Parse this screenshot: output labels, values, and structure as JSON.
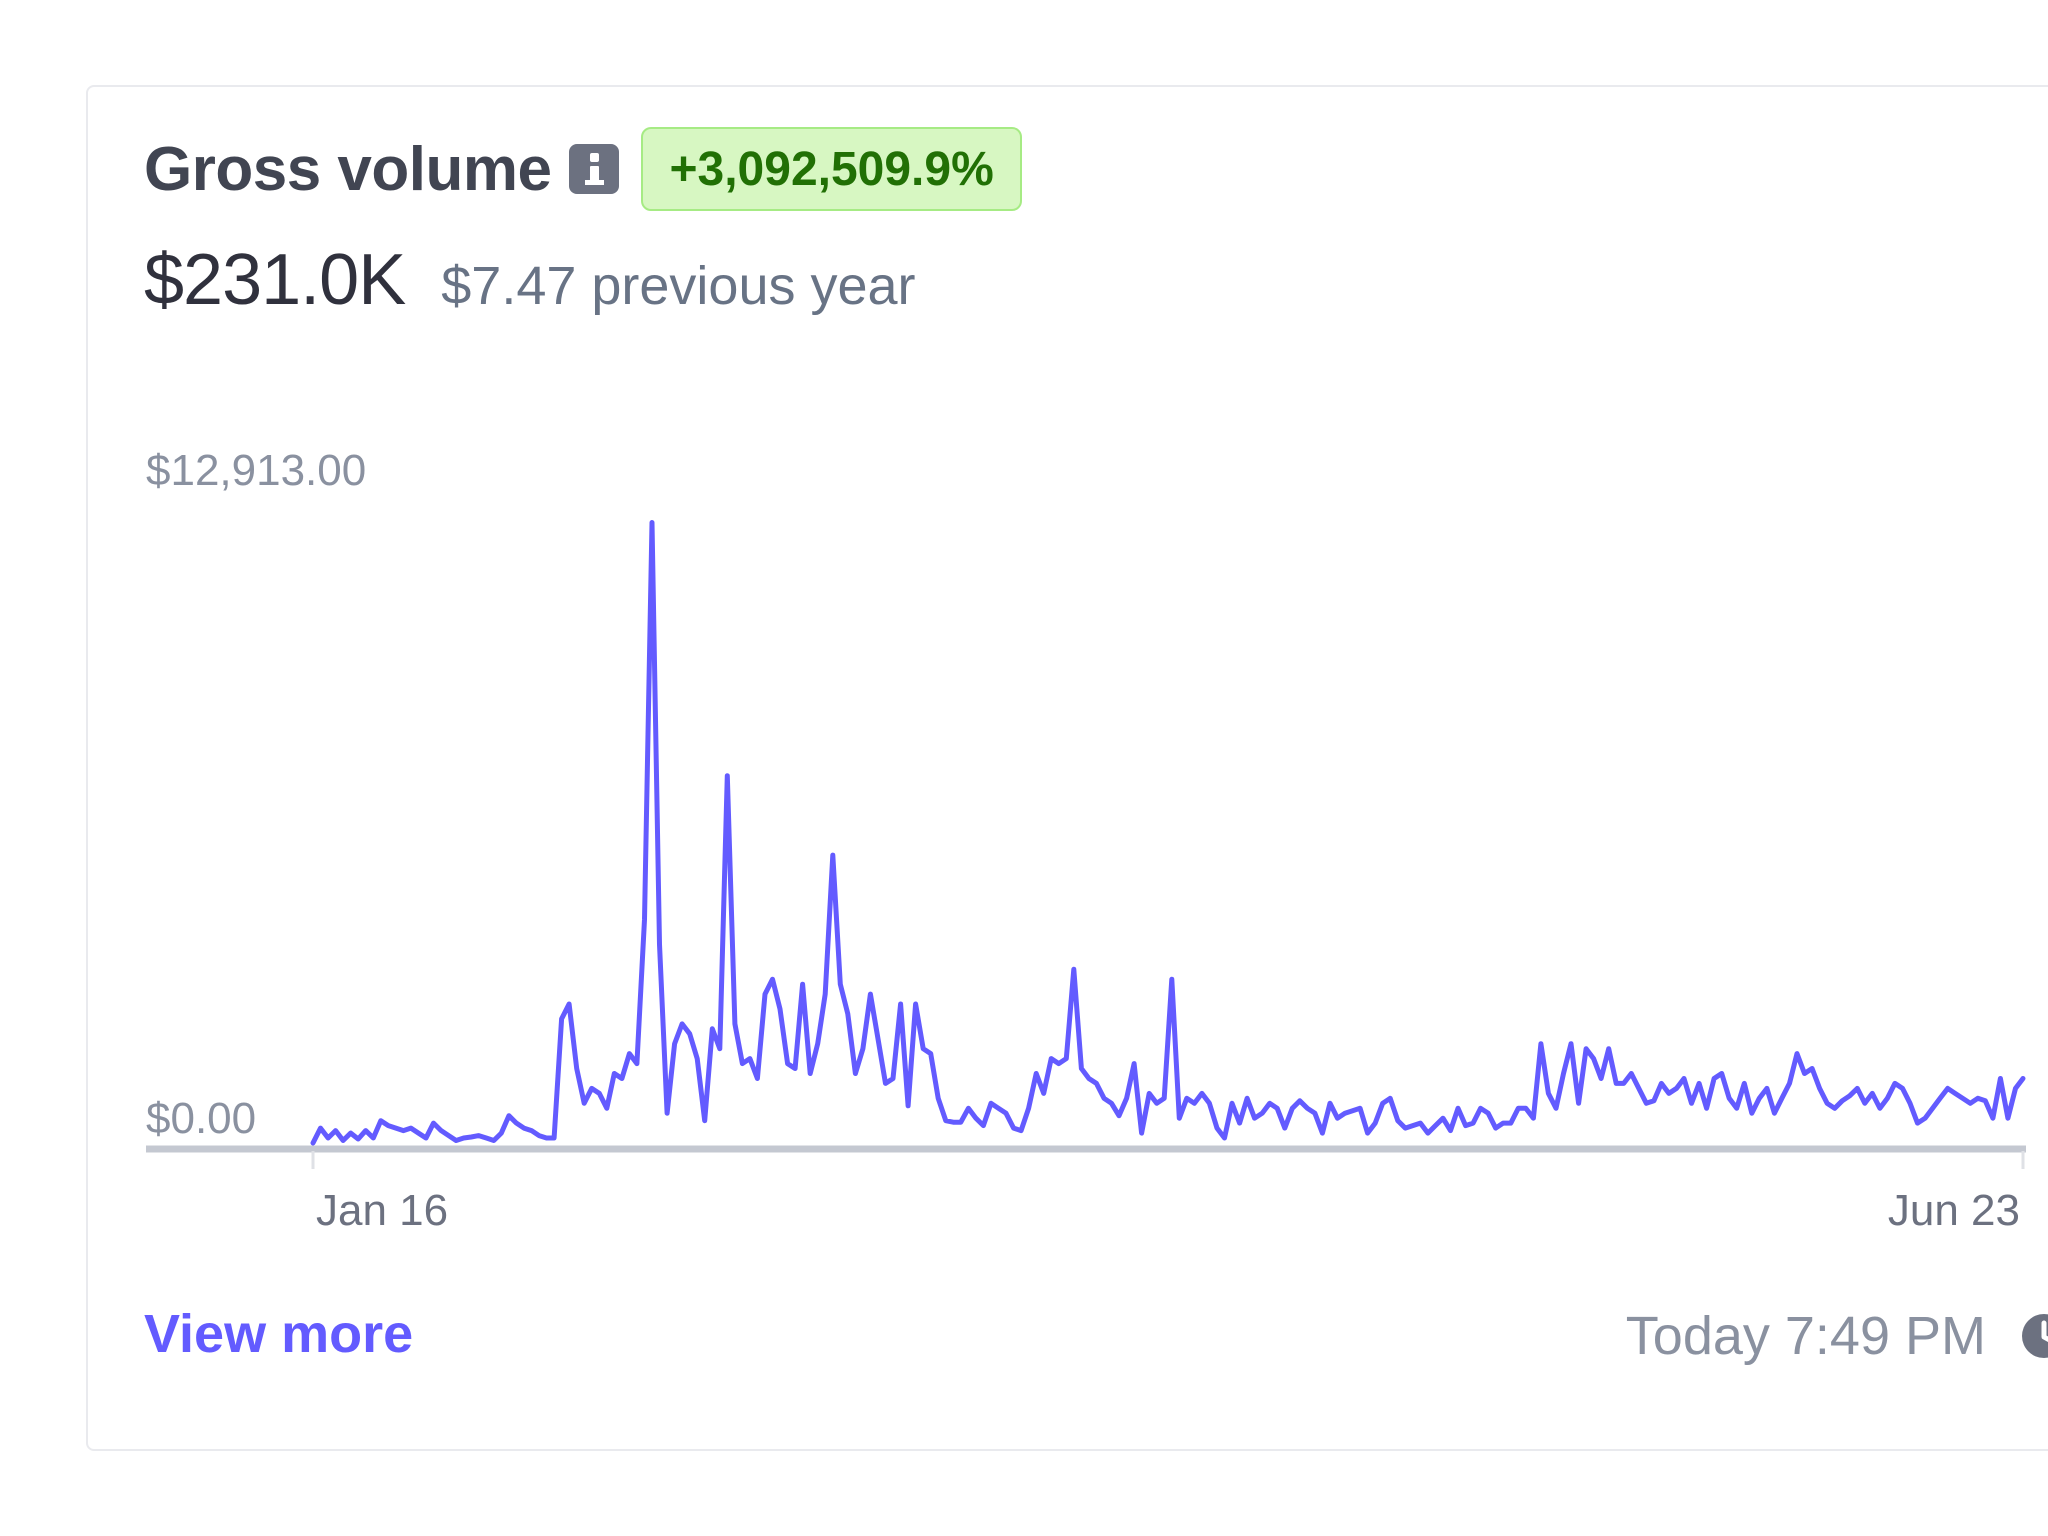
{
  "card": {
    "title": "Gross volume",
    "info_icon": "info-icon",
    "badge": "+3,092,509.9%",
    "amount": "$231.0K",
    "previous": "$7.47 previous year",
    "view_more": "View more",
    "timestamp": "Today 7:49 PM",
    "clock_icon": "clock-icon"
  },
  "colors": {
    "line": "#635bff",
    "badge_bg": "#d7f7c2",
    "badge_text": "#217005",
    "link": "#635bff"
  },
  "chart_data": {
    "type": "line",
    "y_tick_labels": [
      "$12,913.00",
      "$0.00"
    ],
    "x_tick_labels": [
      "Jan 16",
      "Jun 23"
    ],
    "ylim": [
      0,
      12913
    ],
    "grid": false,
    "series": [
      {
        "values": [
          0,
          300,
          100,
          250,
          50,
          200,
          80,
          250,
          100,
          450,
          350,
          300,
          250,
          300,
          200,
          100,
          400,
          250,
          150,
          50,
          100,
          120,
          150,
          100,
          50,
          200,
          550,
          400,
          300,
          250,
          150,
          100,
          100,
          2500,
          2800,
          1500,
          800,
          1100,
          1000,
          700,
          1400,
          1300,
          1800,
          1600,
          4500,
          12500,
          4000,
          600,
          2000,
          2400,
          2200,
          1700,
          450,
          2300,
          1900,
          7400,
          2400,
          1600,
          1700,
          1300,
          3000,
          3300,
          2700,
          1600,
          1500,
          3200,
          1400,
          2000,
          3000,
          5800,
          3200,
          2600,
          1400,
          1900,
          3000,
          2100,
          1200,
          1300,
          2800,
          750,
          2800,
          1900,
          1800,
          900,
          450,
          420,
          420,
          700,
          500,
          350,
          800,
          700,
          600,
          300,
          250,
          700,
          1400,
          1000,
          1700,
          1600,
          1700,
          3500,
          1500,
          1300,
          1200,
          900,
          800,
          550,
          900,
          1600,
          200,
          1000,
          800,
          900,
          3300,
          500,
          900,
          800,
          1000,
          800,
          300,
          100,
          800,
          400,
          900,
          500,
          600,
          800,
          700,
          300,
          700,
          850,
          700,
          600,
          200,
          800,
          500,
          600,
          650,
          700,
          200,
          400,
          800,
          900,
          450,
          300,
          350,
          400,
          200,
          350,
          500,
          250,
          700,
          350,
          400,
          700,
          600,
          300,
          400,
          400,
          700,
          700,
          500,
          2000,
          1000,
          700,
          1400,
          2000,
          800,
          1900,
          1700,
          1300,
          1900,
          1200,
          1200,
          1400,
          1100,
          800,
          850,
          1200,
          1000,
          1100,
          1300,
          800,
          1200,
          700,
          1300,
          1400,
          900,
          700,
          1200,
          600,
          900,
          1100,
          600,
          900,
          1200,
          1800,
          1400,
          1500,
          1100,
          800,
          700,
          850,
          950,
          1100,
          800,
          1000,
          700,
          900,
          1200,
          1100,
          800,
          400,
          500,
          700,
          900,
          1100,
          1000,
          900,
          800,
          900,
          850,
          500,
          1300,
          500,
          1100,
          1300
        ]
      }
    ]
  }
}
